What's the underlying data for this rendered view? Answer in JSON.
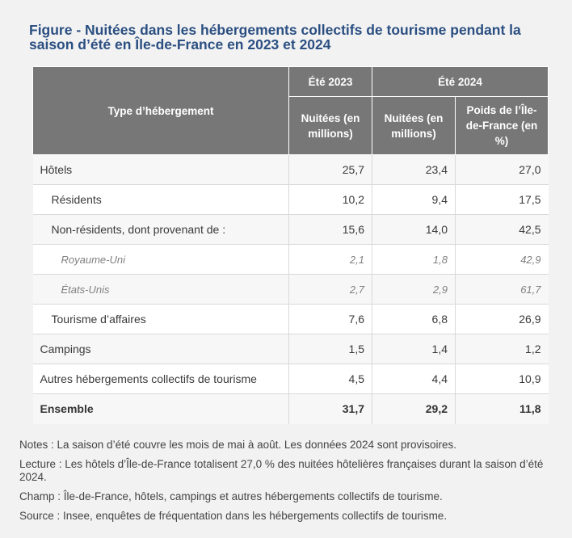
{
  "title": "Figure - Nuitées dans les hébergements collectifs de tourisme pendant la saison d’été en Île-de-France en 2023 et 2024",
  "header": {
    "type_label": "Type d’hébergement",
    "ete_2023": "Été 2023",
    "ete_2024": "Été 2024",
    "nuitees_2023": "Nuitées (en millions)",
    "nuitees_2024": "Nuitées (en millions)",
    "poids": "Poids de l’Île-de-France (en %)"
  },
  "rows": [
    {
      "label": "Hôtels",
      "v2023": "25,7",
      "v2024": "23,4",
      "poids": "27,0"
    },
    {
      "label": "Résidents",
      "v2023": "10,2",
      "v2024": "9,4",
      "poids": "17,5"
    },
    {
      "label": "Non-résidents, dont provenant de :",
      "v2023": "15,6",
      "v2024": "14,0",
      "poids": "42,5"
    },
    {
      "label": "Royaume-Uni",
      "v2023": "2,1",
      "v2024": "1,8",
      "poids": "42,9"
    },
    {
      "label": "États-Unis",
      "v2023": "2,7",
      "v2024": "2,9",
      "poids": "61,7"
    },
    {
      "label": "Tourisme d’affaires",
      "v2023": "7,6",
      "v2024": "6,8",
      "poids": "26,9"
    },
    {
      "label": "Campings",
      "v2023": "1,5",
      "v2024": "1,4",
      "poids": "1,2"
    },
    {
      "label": "Autres hébergements collectifs de tourisme",
      "v2023": "4,5",
      "v2024": "4,4",
      "poids": "10,9"
    },
    {
      "label": "Ensemble",
      "v2023": "31,7",
      "v2024": "29,2",
      "poids": "11,8"
    }
  ],
  "notes": {
    "notes": "Notes : La saison d’été couvre les mois de mai à août. Les données 2024 sont provisoires.",
    "lecture": "Lecture : Les hôtels d’Île-de-France totalisent 27,0 % des nuitées hôtelières françaises durant la saison d’été 2024.",
    "champ": "Champ : Île-de-France, hôtels, campings et autres hébergements collectifs de tourisme.",
    "source": "Source : Insee, enquêtes de fréquentation dans les hébergements collectifs de tourisme."
  },
  "colors": {
    "title": "#2b4f82",
    "header_bg": "#777777"
  }
}
